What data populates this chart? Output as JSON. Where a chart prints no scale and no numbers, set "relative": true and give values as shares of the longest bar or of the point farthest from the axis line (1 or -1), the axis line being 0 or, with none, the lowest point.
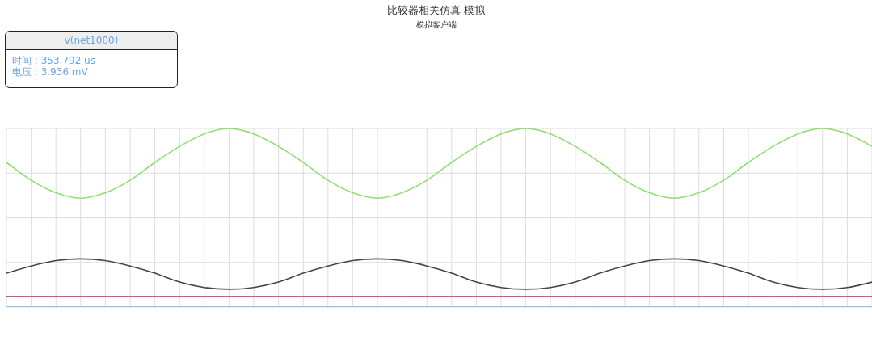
{
  "chart_data": {
    "type": "line",
    "title": "比较器相关仿真 模拟",
    "subtitle": "模拟客户端",
    "annotations": [
      "v(net1000)",
      "时间 : 353.792 us",
      "电压 : 3.936 mV"
    ],
    "categories": [
      null,
      null,
      null,
      null,
      null,
      null,
      null,
      null,
      null,
      null,
      null,
      null,
      null,
      null,
      null,
      null,
      null,
      null,
      null,
      null,
      null,
      null,
      null,
      null,
      null,
      null,
      null,
      null,
      null,
      null,
      null,
      null,
      null,
      null,
      null,
      null
    ],
    "relative": true,
    "grid": true,
    "marker": "none",
    "line_style": "solid",
    "legend": false,
    "series": [
      {
        "color": "#90e070",
        "values": [
          0.81,
          0.71,
          0.64,
          0.61,
          0.64,
          0.71,
          0.81,
          0.9,
          0.97,
          1.0,
          0.97,
          0.9,
          0.81,
          0.71,
          0.64,
          0.61,
          0.64,
          0.71,
          0.81,
          0.9,
          0.97,
          1.0,
          0.97,
          0.9,
          0.81,
          0.71,
          0.64,
          0.61,
          0.64,
          0.71,
          0.81,
          0.9,
          0.97,
          1.0,
          0.97,
          0.9
        ]
      },
      {
        "color": "#454545",
        "values": [
          0.19,
          0.23,
          0.26,
          0.27,
          0.26,
          0.23,
          0.19,
          0.14,
          0.11,
          0.1,
          0.11,
          0.14,
          0.19,
          0.23,
          0.26,
          0.27,
          0.26,
          0.23,
          0.19,
          0.14,
          0.11,
          0.1,
          0.11,
          0.14,
          0.19,
          0.23,
          0.26,
          0.27,
          0.26,
          0.23,
          0.19,
          0.14,
          0.11,
          0.1,
          0.11,
          0.14
        ]
      },
      {
        "color": "#f04878",
        "values": [
          0.06,
          0.06,
          0.06,
          0.06,
          0.06,
          0.06,
          0.06,
          0.06,
          0.06,
          0.06,
          0.06,
          0.06,
          0.06,
          0.06,
          0.06,
          0.06,
          0.06,
          0.06,
          0.06,
          0.06,
          0.06,
          0.06,
          0.06,
          0.06,
          0.06,
          0.06,
          0.06,
          0.06,
          0.06,
          0.06,
          0.06,
          0.06,
          0.06,
          0.06,
          0.06,
          0.06
        ]
      },
      {
        "color": "#70b4f0",
        "values": [
          0,
          0,
          0,
          0,
          0,
          0,
          0,
          0,
          0,
          0,
          0,
          0,
          0,
          0,
          0,
          0,
          0,
          0,
          0,
          0,
          0,
          0,
          0,
          0,
          0,
          0,
          0,
          0,
          0,
          0,
          0,
          0,
          0,
          0,
          0,
          0
        ]
      }
    ]
  }
}
